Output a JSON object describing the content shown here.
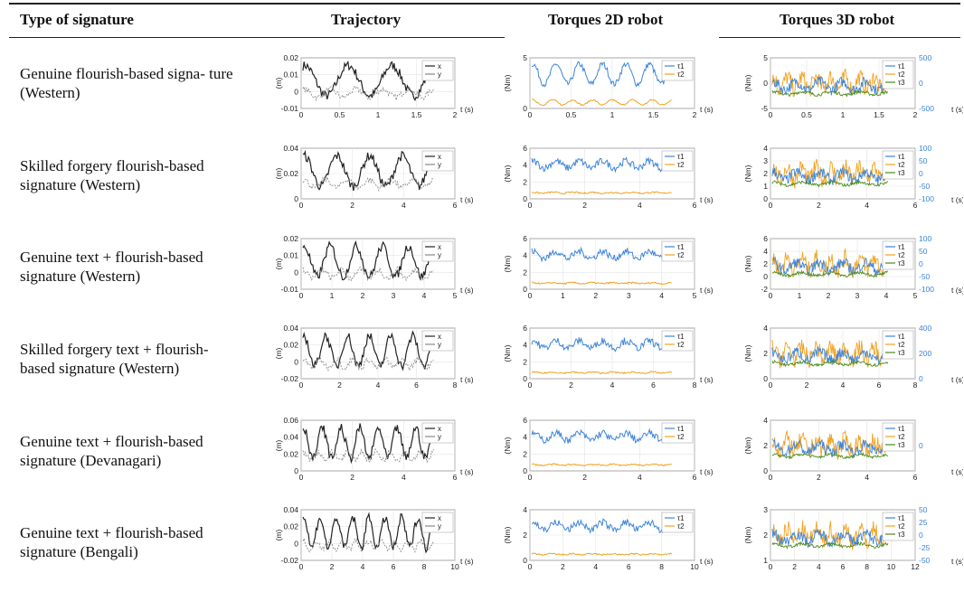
{
  "headers": {
    "type": "Type of signature",
    "trajectory": "Trajectory",
    "torques2d": "Torques 2D robot",
    "torques3d": "Torques 3D robot"
  },
  "colors": {
    "blue": "#3d84d8",
    "orange": "#f0a21f",
    "green": "#4a8a1c",
    "black": "#222222",
    "gray": "#888888"
  },
  "rows": [
    {
      "label": "Genuine flourish-based signa- ture (Western)",
      "traj": {
        "xticks": [
          "0",
          "0.5",
          "1",
          "1.5",
          "2"
        ],
        "yticks": [
          "0.02",
          "0.01",
          "0",
          "-0.01"
        ],
        "ylabel": "(m)",
        "xunit": "t (s)",
        "legend": [
          "x",
          "y"
        ]
      },
      "t2d": {
        "xticks": [
          "0",
          "0.5",
          "1",
          "1.5",
          "2"
        ],
        "yticks": [
          "5",
          "0"
        ],
        "ylabel": "(Nm)",
        "xunit": "t (s)",
        "legend": [
          "τ1",
          "τ2"
        ]
      },
      "t3d": {
        "xticks": [
          "0",
          "0.5",
          "1",
          "1.5",
          "2"
        ],
        "yticks": [
          "5",
          "0",
          "-5"
        ],
        "y2ticks": [
          "500",
          "0",
          "-500"
        ],
        "ylabel": "(Nm)",
        "xunit": "t (s)",
        "legend": [
          "τ1",
          "τ2",
          "τ3"
        ]
      }
    },
    {
      "label": "Skilled forgery flourish-based signature (Western)",
      "traj": {
        "xticks": [
          "0",
          "2",
          "4",
          "6"
        ],
        "yticks": [
          "0.04",
          "0.02",
          "0"
        ],
        "ylabel": "(m)",
        "xunit": "t (s)",
        "legend": [
          "x",
          "y"
        ]
      },
      "t2d": {
        "xticks": [
          "0",
          "2",
          "4",
          "6"
        ],
        "yticks": [
          "6",
          "4",
          "2",
          "0"
        ],
        "ylabel": "(Nm)",
        "xunit": "t (s)",
        "legend": [
          "τ1",
          "τ2"
        ]
      },
      "t3d": {
        "xticks": [
          "0",
          "2",
          "4",
          "6"
        ],
        "yticks": [
          "4",
          "3",
          "2",
          "1",
          "0"
        ],
        "y2ticks": [
          "100",
          "50",
          "0",
          "-50",
          "-100"
        ],
        "ylabel": "(Nm)",
        "xunit": "t (s)",
        "legend": [
          "τ1",
          "τ2",
          "τ3"
        ]
      }
    },
    {
      "label": "Genuine text + flourish-based signature (Western)",
      "traj": {
        "xticks": [
          "0",
          "1",
          "2",
          "3",
          "4",
          "5"
        ],
        "yticks": [
          "0.02",
          "0.01",
          "0",
          "-0.01"
        ],
        "ylabel": "(m)",
        "xunit": "t (s)",
        "legend": [
          "x",
          "y"
        ]
      },
      "t2d": {
        "xticks": [
          "0",
          "1",
          "2",
          "3",
          "4",
          "5"
        ],
        "yticks": [
          "6",
          "4",
          "2",
          "0"
        ],
        "ylabel": "(Nm)",
        "xunit": "t (s)",
        "legend": [
          "τ1",
          "τ2"
        ]
      },
      "t3d": {
        "xticks": [
          "0",
          "1",
          "2",
          "3",
          "4",
          "5"
        ],
        "yticks": [
          "6",
          "4",
          "2",
          "0",
          "-2"
        ],
        "y2ticks": [
          "100",
          "50",
          "0",
          "-50",
          "-100"
        ],
        "ylabel": "(Nm)",
        "xunit": "t (s)",
        "legend": [
          "τ1",
          "τ2",
          "τ3"
        ]
      }
    },
    {
      "label": "Skilled forgery text + flourish- based signature (Western)",
      "traj": {
        "xticks": [
          "0",
          "2",
          "4",
          "6",
          "8"
        ],
        "yticks": [
          "0.04",
          "0.02",
          "0",
          "-0.02"
        ],
        "ylabel": "(m)",
        "xunit": "t (s)",
        "legend": [
          "x",
          "y"
        ]
      },
      "t2d": {
        "xticks": [
          "0",
          "2",
          "4",
          "6",
          "8"
        ],
        "yticks": [
          "6",
          "4",
          "2",
          "0"
        ],
        "ylabel": "(Nm)",
        "xunit": "t (s)",
        "legend": [
          "τ1",
          "τ2"
        ]
      },
      "t3d": {
        "xticks": [
          "0",
          "2",
          "4",
          "6",
          "8"
        ],
        "yticks": [
          "4",
          "2",
          "0"
        ],
        "y2ticks": [
          "400",
          "200",
          "0"
        ],
        "ylabel": "(Nm)",
        "xunit": "t (s)",
        "legend": [
          "τ1",
          "τ2",
          "τ3"
        ]
      }
    },
    {
      "label": "Genuine text + flourish-based signature (Devanagari)",
      "traj": {
        "xticks": [
          "0",
          "2",
          "4",
          "6"
        ],
        "yticks": [
          "0.06",
          "0.04",
          "0.02",
          "0"
        ],
        "ylabel": "(m)",
        "xunit": "t (s)",
        "legend": [
          "x",
          "y"
        ]
      },
      "t2d": {
        "xticks": [
          "0",
          "2",
          "4",
          "6"
        ],
        "yticks": [
          "6",
          "4",
          "2",
          "0"
        ],
        "ylabel": "(Nm)",
        "xunit": "t (s)",
        "legend": [
          "τ1",
          "τ2"
        ]
      },
      "t3d": {
        "xticks": [
          "0",
          "2",
          "4",
          "6"
        ],
        "yticks": [
          "4",
          "2",
          "0"
        ],
        "y2ticks": [
          "0"
        ],
        "ylabel": "(Nm)",
        "xunit": "t (s)",
        "legend": [
          "τ1",
          "τ2",
          "τ3"
        ]
      }
    },
    {
      "label": "Genuine text + flourish-based signature (Bengali)",
      "traj": {
        "xticks": [
          "0",
          "2",
          "4",
          "6",
          "8",
          "10"
        ],
        "yticks": [
          "0.04",
          "0.02",
          "0",
          "-0.02"
        ],
        "ylabel": "(m)",
        "xunit": "t (s)",
        "legend": [
          "x",
          "y"
        ]
      },
      "t2d": {
        "xticks": [
          "0",
          "2",
          "4",
          "6",
          "8",
          "10"
        ],
        "yticks": [
          "4",
          "2",
          "0"
        ],
        "ylabel": "(Nm)",
        "xunit": "t (s)",
        "legend": [
          "τ1",
          "τ2"
        ]
      },
      "t3d": {
        "xticks": [
          "0",
          "2",
          "4",
          "6",
          "8",
          "10",
          "12"
        ],
        "yticks": [
          "3",
          "2",
          "1"
        ],
        "y2ticks": [
          "50",
          "25",
          "0",
          "-25",
          "-50"
        ],
        "ylabel": "(Nm)",
        "xunit": "t (s)",
        "legend": [
          "τ1",
          "τ2",
          "τ3"
        ]
      }
    }
  ]
}
